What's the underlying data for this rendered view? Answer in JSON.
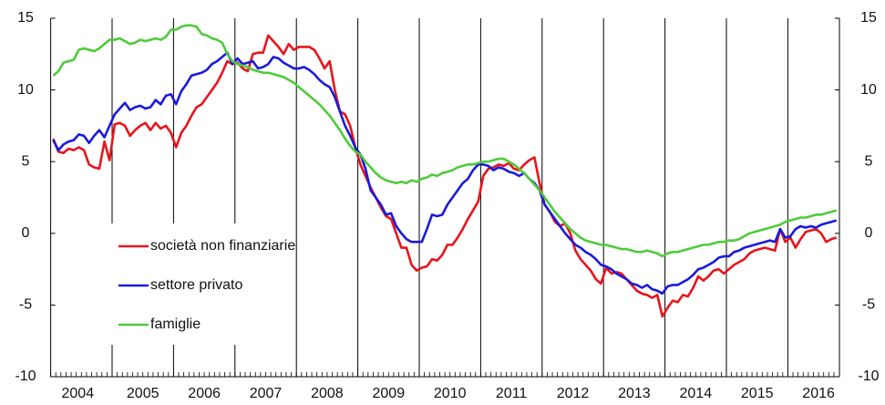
{
  "chart_data": {
    "type": "line",
    "categories": [
      "2004",
      null,
      null,
      null,
      null,
      null,
      null,
      null,
      null,
      null,
      null,
      null,
      "2005",
      null,
      null,
      null,
      null,
      null,
      null,
      null,
      null,
      null,
      null,
      null,
      "2006",
      null,
      null,
      null,
      null,
      null,
      null,
      null,
      null,
      null,
      null,
      null,
      "2007",
      null,
      null,
      null,
      null,
      null,
      null,
      null,
      null,
      null,
      null,
      null,
      "2008",
      null,
      null,
      null,
      null,
      null,
      null,
      null,
      null,
      null,
      null,
      null,
      "2009",
      null,
      null,
      null,
      null,
      null,
      null,
      null,
      null,
      null,
      null,
      null,
      "2010",
      null,
      null,
      null,
      null,
      null,
      null,
      null,
      null,
      null,
      null,
      null,
      "2011",
      null,
      null,
      null,
      null,
      null,
      null,
      null,
      null,
      null,
      null,
      null,
      "2012",
      null,
      null,
      null,
      null,
      null,
      null,
      null,
      null,
      null,
      null,
      null,
      "2013",
      null,
      null,
      null,
      null,
      null,
      null,
      null,
      null,
      null,
      null,
      null,
      "2014",
      null,
      null,
      null,
      null,
      null,
      null,
      null,
      null,
      null,
      null,
      null,
      "2015",
      null,
      null,
      null,
      null,
      null,
      null,
      null,
      null,
      null,
      null,
      null,
      "2016",
      null,
      null,
      null,
      null,
      null,
      null,
      null,
      null,
      null
    ],
    "series": [
      {
        "name": "società non finanziarie",
        "color": "#e8141b",
        "values": [
          6.6,
          5.7,
          5.6,
          5.9,
          5.8,
          6.0,
          5.8,
          4.8,
          4.6,
          4.5,
          6.4,
          5.1,
          7.6,
          7.7,
          7.5,
          6.8,
          7.2,
          7.5,
          7.7,
          7.2,
          7.7,
          7.3,
          7.5,
          7.0,
          6.0,
          7.0,
          7.5,
          8.2,
          8.8,
          9.0,
          9.5,
          10.0,
          10.5,
          11.2,
          12.0,
          11.8,
          11.9,
          11.5,
          11.3,
          12.5,
          12.6,
          12.6,
          13.8,
          13.4,
          13.0,
          12.5,
          13.2,
          12.8,
          13.0,
          13.0,
          13.0,
          12.8,
          12.2,
          11.5,
          12.0,
          10.0,
          8.5,
          8.3,
          7.5,
          6.0,
          4.8,
          4.0,
          3.2,
          2.5,
          1.8,
          1.2,
          1.0,
          0.0,
          -1.0,
          -1.0,
          -2.2,
          -2.6,
          -2.4,
          -2.3,
          -1.8,
          -1.9,
          -1.5,
          -0.8,
          -0.8,
          -0.3,
          0.3,
          1.0,
          1.6,
          2.2,
          4.0,
          4.5,
          4.6,
          4.8,
          4.7,
          4.9,
          4.5,
          4.4,
          4.8,
          5.1,
          5.3,
          3.5,
          2.0,
          1.5,
          0.8,
          0.5,
          0.7,
          0.0,
          -1.2,
          -1.8,
          -2.2,
          -2.6,
          -3.2,
          -3.5,
          -2.4,
          -2.8,
          -2.7,
          -2.8,
          -3.2,
          -3.6,
          -4.0,
          -4.2,
          -4.3,
          -4.5,
          -4.3,
          -5.8,
          -5.2,
          -4.7,
          -4.8,
          -4.3,
          -4.4,
          -3.8,
          -3.0,
          -3.3,
          -3.0,
          -2.6,
          -2.5,
          -2.8,
          -2.5,
          -2.2,
          -2.0,
          -1.8,
          -1.4,
          -1.2,
          -1.1,
          -1.0,
          -1.1,
          -1.2,
          0.3,
          -0.6,
          -0.3,
          -1.0,
          -0.4,
          0.1,
          0.2,
          0.3,
          0.0,
          -0.6,
          -0.4,
          -0.3
        ]
      },
      {
        "name": "settore privato",
        "color": "#1a1adb",
        "values": [
          6.5,
          5.8,
          6.2,
          6.4,
          6.5,
          6.9,
          6.8,
          6.3,
          6.8,
          7.2,
          6.7,
          7.5,
          8.3,
          8.7,
          9.1,
          8.6,
          8.8,
          8.9,
          8.7,
          8.8,
          9.3,
          9.0,
          9.6,
          9.7,
          9.0,
          9.9,
          10.4,
          11.0,
          11.1,
          11.2,
          11.4,
          11.8,
          12.0,
          12.3,
          12.6,
          11.8,
          12.2,
          11.8,
          11.9,
          12.0,
          11.5,
          11.6,
          11.8,
          12.3,
          12.2,
          11.9,
          11.7,
          11.5,
          11.5,
          11.6,
          11.4,
          11.1,
          10.7,
          10.4,
          10.2,
          9.5,
          8.5,
          7.5,
          6.8,
          6.0,
          5.5,
          4.5,
          3.0,
          2.5,
          2.0,
          1.3,
          1.4,
          0.5,
          0.0,
          -0.4,
          -0.6,
          -0.6,
          -0.6,
          0.3,
          1.3,
          1.2,
          1.3,
          2.0,
          2.5,
          3.0,
          3.5,
          3.8,
          4.4,
          4.8,
          4.8,
          4.7,
          4.4,
          4.6,
          4.5,
          4.3,
          4.2,
          4.0,
          4.2,
          3.8,
          3.5,
          3.0,
          2.0,
          1.5,
          1.0,
          0.5,
          0.0,
          -0.4,
          -0.8,
          -1.0,
          -1.3,
          -1.5,
          -1.8,
          -2.2,
          -2.3,
          -2.5,
          -2.8,
          -3.0,
          -3.2,
          -3.5,
          -3.6,
          -3.8,
          -3.6,
          -3.9,
          -4.0,
          -4.2,
          -3.7,
          -3.6,
          -3.6,
          -3.4,
          -3.2,
          -2.9,
          -2.5,
          -2.4,
          -2.2,
          -2.0,
          -1.7,
          -1.6,
          -1.6,
          -1.3,
          -1.2,
          -1.0,
          -0.9,
          -0.8,
          -0.7,
          -0.6,
          -0.5,
          -0.6,
          0.3,
          -0.3,
          -0.2,
          0.3,
          0.5,
          0.4,
          0.5,
          0.4,
          0.6,
          0.7,
          0.8,
          0.9
        ]
      },
      {
        "name": "famiglie",
        "color": "#4ecb3a",
        "values": [
          11.0,
          11.3,
          11.9,
          12.0,
          12.1,
          12.8,
          12.9,
          12.8,
          12.7,
          12.9,
          13.2,
          13.5,
          13.5,
          13.6,
          13.4,
          13.2,
          13.3,
          13.5,
          13.4,
          13.5,
          13.6,
          13.5,
          13.7,
          14.2,
          14.2,
          14.4,
          14.5,
          14.5,
          14.4,
          13.9,
          13.8,
          13.6,
          13.5,
          13.3,
          12.5,
          12.0,
          11.8,
          11.7,
          11.6,
          11.4,
          11.3,
          11.2,
          11.2,
          11.1,
          11.0,
          10.9,
          10.7,
          10.5,
          10.2,
          9.9,
          9.6,
          9.3,
          9.0,
          8.6,
          8.2,
          7.7,
          7.2,
          6.6,
          6.1,
          5.7,
          5.5,
          5.0,
          4.6,
          4.2,
          3.9,
          3.7,
          3.6,
          3.5,
          3.6,
          3.5,
          3.7,
          3.6,
          3.8,
          3.9,
          4.1,
          4.0,
          4.2,
          4.3,
          4.4,
          4.6,
          4.7,
          4.8,
          4.8,
          4.9,
          5.0,
          5.0,
          5.1,
          5.2,
          5.2,
          5.0,
          4.8,
          4.5,
          4.2,
          3.8,
          3.4,
          3.0,
          2.5,
          2.0,
          1.5,
          1.1,
          0.7,
          0.3,
          0.0,
          -0.3,
          -0.5,
          -0.6,
          -0.7,
          -0.8,
          -0.8,
          -0.9,
          -1.0,
          -1.1,
          -1.1,
          -1.2,
          -1.3,
          -1.3,
          -1.2,
          -1.3,
          -1.4,
          -1.6,
          -1.4,
          -1.3,
          -1.3,
          -1.2,
          -1.1,
          -1.0,
          -0.9,
          -0.8,
          -0.8,
          -0.7,
          -0.6,
          -0.6,
          -0.5,
          -0.5,
          -0.4,
          -0.2,
          0.0,
          0.1,
          0.2,
          0.3,
          0.4,
          0.5,
          0.6,
          0.8,
          0.9,
          1.0,
          1.1,
          1.1,
          1.2,
          1.3,
          1.3,
          1.4,
          1.5,
          1.6
        ]
      }
    ],
    "ylim": [
      -10,
      15
    ],
    "yticks": [
      -10,
      -5,
      0,
      5,
      10,
      15
    ],
    "y2lim": [
      -10,
      15
    ],
    "y2ticks": [
      -10,
      -5,
      0,
      5,
      10,
      15
    ],
    "grid": false,
    "legend": "lower left"
  }
}
